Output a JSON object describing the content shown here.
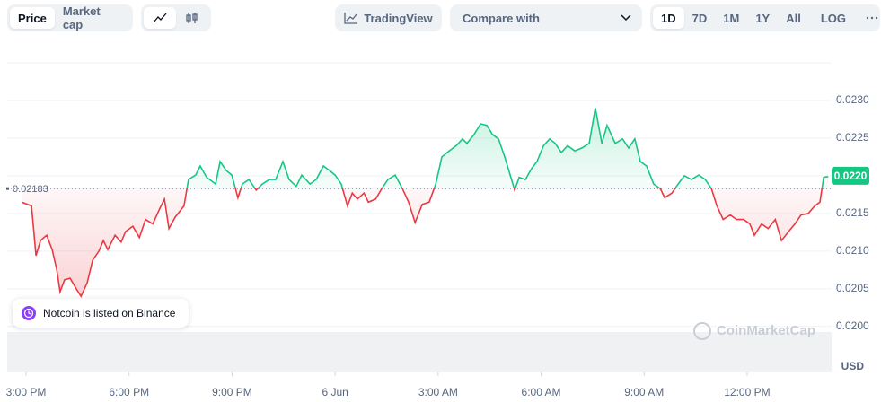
{
  "toolbar": {
    "view_tabs": [
      "Price",
      "Market cap"
    ],
    "tradingview": "TradingView",
    "compare": "Compare with",
    "ranges": [
      "1D",
      "7D",
      "1M",
      "1Y",
      "All"
    ],
    "log": "LOG"
  },
  "chart_data": {
    "type": "line",
    "x": [
      -0.13,
      0.16,
      0.29,
      0.42,
      0.6,
      0.76,
      0.89,
      0.99,
      1.12,
      1.28,
      1.46,
      1.6,
      1.78,
      1.94,
      2.12,
      2.25,
      2.38,
      2.59,
      2.77,
      2.9,
      3.11,
      3.3,
      3.48,
      3.69,
      3.9,
      4.03,
      4.16,
      4.34,
      4.6,
      4.73,
      4.94,
      5.07,
      5.26,
      5.52,
      5.65,
      5.83,
      5.99,
      6.17,
      6.3,
      6.49,
      6.7,
      6.88,
      7.09,
      7.27,
      7.48,
      7.66,
      7.87,
      8.03,
      8.27,
      8.45,
      8.66,
      8.84,
      9.0,
      9.18,
      9.36,
      9.5,
      9.65,
      9.84,
      9.97,
      10.18,
      10.36,
      10.54,
      10.75,
      10.96,
      11.14,
      11.33,
      11.54,
      11.74,
      11.93,
      12.11,
      12.32,
      12.53,
      12.71,
      12.84,
      13.05,
      13.24,
      13.42,
      13.58,
      13.76,
      13.94,
      14.1,
      14.23,
      14.36,
      14.54,
      14.73,
      14.88,
      15.07,
      15.25,
      15.41,
      15.59,
      15.77,
      15.98,
      16.19,
      16.4,
      16.58,
      16.77,
      16.92,
      17.16,
      17.37,
      17.55,
      17.73,
      17.89,
      18.07,
      18.28,
      18.47,
      18.6,
      18.81,
      18.99,
      19.17,
      19.38,
      19.59,
      19.78,
      19.96,
      20.12,
      20.3,
      20.51,
      20.69,
      20.9,
      21.08,
      21.21,
      21.42,
      21.61,
      21.82,
      22.0,
      22.21,
      22.39,
      22.57,
      22.78,
      22.97,
      23.12,
      23.23,
      23.36
    ],
    "values": [
      0.02165,
      0.0216,
      0.02094,
      0.02114,
      0.02121,
      0.02102,
      0.02076,
      0.02046,
      0.02062,
      0.02064,
      0.0205,
      0.0204,
      0.02058,
      0.02088,
      0.021,
      0.02114,
      0.02102,
      0.02121,
      0.02112,
      0.02126,
      0.02133,
      0.02118,
      0.02142,
      0.02136,
      0.02157,
      0.02169,
      0.0213,
      0.02145,
      0.0216,
      0.02195,
      0.02201,
      0.02213,
      0.02198,
      0.02189,
      0.02219,
      0.02207,
      0.02201,
      0.02171,
      0.02189,
      0.02195,
      0.02181,
      0.02189,
      0.02195,
      0.02195,
      0.02219,
      0.02195,
      0.02186,
      0.02201,
      0.02189,
      0.02195,
      0.02213,
      0.02207,
      0.02201,
      0.02189,
      0.0216,
      0.02177,
      0.02169,
      0.02177,
      0.02165,
      0.02169,
      0.02183,
      0.02195,
      0.02201,
      0.02183,
      0.02165,
      0.02138,
      0.02162,
      0.02165,
      0.02189,
      0.02225,
      0.02233,
      0.0224,
      0.02249,
      0.02243,
      0.02255,
      0.02269,
      0.02267,
      0.02255,
      0.02249,
      0.02225,
      0.02201,
      0.02181,
      0.02198,
      0.02195,
      0.0221,
      0.02219,
      0.0224,
      0.02249,
      0.02243,
      0.02231,
      0.0224,
      0.02233,
      0.02237,
      0.02243,
      0.0229,
      0.02243,
      0.02267,
      0.02243,
      0.02249,
      0.02237,
      0.02249,
      0.02219,
      0.02213,
      0.02189,
      0.02183,
      0.02171,
      0.02177,
      0.02189,
      0.022,
      0.02195,
      0.02201,
      0.02195,
      0.02183,
      0.0216,
      0.02142,
      0.02148,
      0.02142,
      0.02142,
      0.02136,
      0.02121,
      0.02136,
      0.0213,
      0.02142,
      0.02114,
      0.02126,
      0.02136,
      0.02148,
      0.0215,
      0.0216,
      0.02165,
      0.02198,
      0.02199
    ],
    "baseline": 0.02183,
    "up_color": "#16c784",
    "down_color": "#ea3943",
    "xlim": [
      -0.55,
      23.46
    ],
    "xticks": [
      {
        "value": 0,
        "label": "3:00 PM"
      },
      {
        "value": 3,
        "label": "6:00 PM"
      },
      {
        "value": 6,
        "label": "9:00 PM"
      },
      {
        "value": 9,
        "label": "6 Jun"
      },
      {
        "value": 12,
        "label": "3:00 AM"
      },
      {
        "value": 15,
        "label": "6:00 AM"
      },
      {
        "value": 18,
        "label": "9:00 AM"
      },
      {
        "value": 21,
        "label": "12:00 PM"
      }
    ],
    "ylim": [
      0.01939,
      0.0235
    ],
    "yticks": [
      {
        "value": 0.02,
        "label": "0.0200"
      },
      0.0205,
      {
        "value": 0.021,
        "label": "0.0210"
      },
      0.0215,
      {
        "value": 0.022,
        "label": "0.0220"
      },
      0.0225,
      {
        "value": 0.023,
        "label": "0.0230"
      }
    ],
    "y_unit": "USD",
    "last_price": {
      "value": 0.022,
      "label": "0.0220"
    },
    "annotation": "Notcoin is listed on Binance",
    "watermark": "CoinMarketCap",
    "grid": true
  }
}
